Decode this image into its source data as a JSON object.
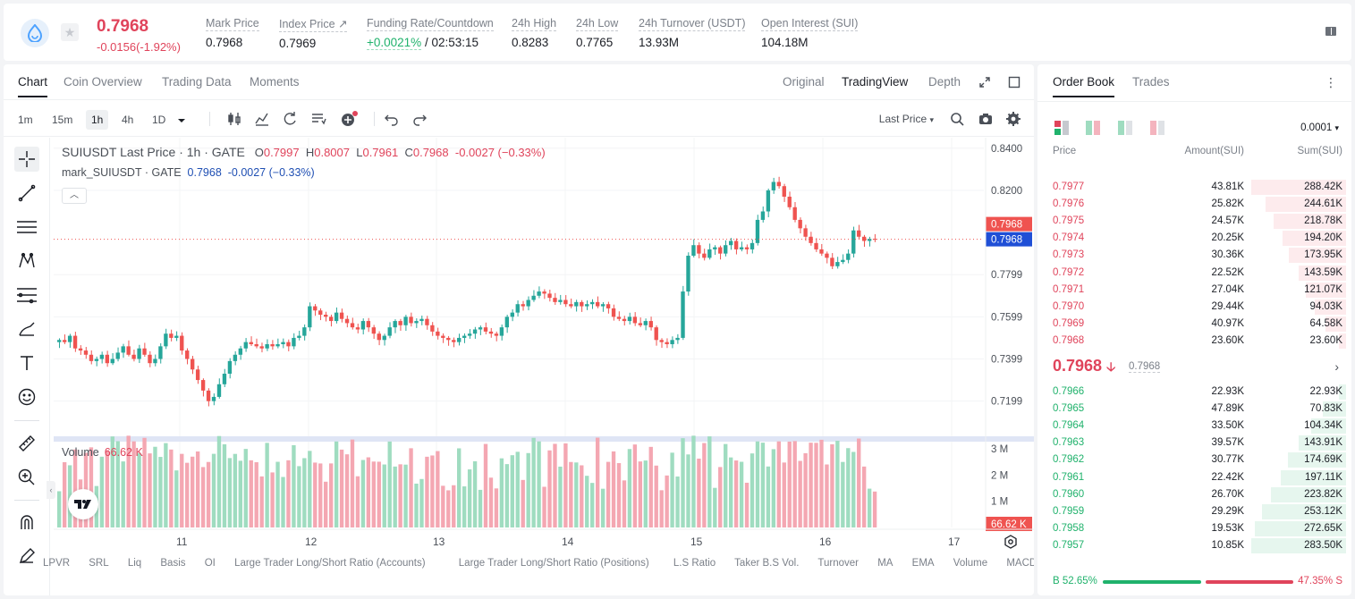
{
  "ticker": {
    "last_price": "0.7968",
    "change": "-0.0156(-1.92%)",
    "stats": [
      {
        "label": "Mark Price",
        "value": "0.7968"
      },
      {
        "label": "Index Price ↗",
        "value": "0.7969"
      },
      {
        "label": "Funding Rate/Countdown",
        "value_green": "+0.0021%",
        "value": " / 02:53:15"
      },
      {
        "label": "24h High",
        "value": "0.8283"
      },
      {
        "label": "24h Low",
        "value": "0.7765"
      },
      {
        "label": "24h Turnover (USDT)",
        "value": "13.93M"
      },
      {
        "label": "Open Interest (SUI)",
        "value": "104.18M"
      }
    ]
  },
  "chart_tabs": [
    "Chart",
    "Coin Overview",
    "Trading Data",
    "Moments"
  ],
  "view_tabs": [
    "Original",
    "TradingView",
    "Depth"
  ],
  "timeframes": [
    "1m",
    "15m",
    "1h",
    "4h",
    "1D"
  ],
  "last_price_select": "Last Price",
  "legend": {
    "title": "SUIUSDT Last Price · 1h · GATE",
    "o_label": "O",
    "o": "0.7997",
    "h_label": "H",
    "h": "0.8007",
    "l_label": "L",
    "l": "0.7961",
    "c_label": "C",
    "c": "0.7968",
    "chg": "-0.0027 (−0.33%)",
    "mark_title": "mark_SUIUSDT · GATE",
    "mark_val": "0.7968",
    "mark_chg": "-0.0027 (−0.33%)"
  },
  "volume_legend": {
    "label": "Volume",
    "value": "66.62 K"
  },
  "bottom_indicators": [
    "LPVR",
    "SRL",
    "Liq",
    "Basis",
    "OI",
    "Large Trader Long/Short Ratio (Accounts)",
    "Large Trader Long/Short Ratio (Positions)",
    "L.S Ratio",
    "Taker B.S Vol.",
    "Turnover",
    "MA",
    "EMA",
    "Volume",
    "MACD"
  ],
  "chart_data": {
    "type": "candlestick",
    "y_ticks": [
      "0.8400",
      "0.8200",
      "0.7799",
      "0.7599",
      "0.7399",
      "0.7199"
    ],
    "x_ticks": [
      "11",
      "12",
      "13",
      "14",
      "15",
      "16",
      "17"
    ],
    "price_labels": {
      "last": "0.7968",
      "mark": "0.7968"
    },
    "volume_ticks": [
      "3 M",
      "2 M",
      "1 M"
    ],
    "volume_last": "66.62 K",
    "ylim": [
      0.705,
      0.845
    ],
    "colors": {
      "up": "#26a69a",
      "down": "#ef5350"
    }
  },
  "order_book": {
    "tabs": [
      "Order Book",
      "Trades"
    ],
    "precision": "0.0001",
    "headers": [
      "Price",
      "Amount(SUI)",
      "Sum(SUI)"
    ],
    "asks": [
      {
        "price": "0.7977",
        "amount": "43.81K",
        "sum": "288.42K",
        "depth": 1.0
      },
      {
        "price": "0.7976",
        "amount": "25.82K",
        "sum": "244.61K",
        "depth": 0.85
      },
      {
        "price": "0.7975",
        "amount": "24.57K",
        "sum": "218.78K",
        "depth": 0.76
      },
      {
        "price": "0.7974",
        "amount": "20.25K",
        "sum": "194.20K",
        "depth": 0.67
      },
      {
        "price": "0.7973",
        "amount": "30.36K",
        "sum": "173.95K",
        "depth": 0.6
      },
      {
        "price": "0.7972",
        "amount": "22.52K",
        "sum": "143.59K",
        "depth": 0.5
      },
      {
        "price": "0.7971",
        "amount": "27.04K",
        "sum": "121.07K",
        "depth": 0.42
      },
      {
        "price": "0.7970",
        "amount": "29.44K",
        "sum": "94.03K",
        "depth": 0.33
      },
      {
        "price": "0.7969",
        "amount": "40.97K",
        "sum": "64.58K",
        "depth": 0.22
      },
      {
        "price": "0.7968",
        "amount": "23.60K",
        "sum": "23.60K",
        "depth": 0.08
      }
    ],
    "mid_price": "0.7968",
    "mid_mark": "0.7968",
    "bids": [
      {
        "price": "0.7966",
        "amount": "22.93K",
        "sum": "22.93K",
        "depth": 0.08
      },
      {
        "price": "0.7965",
        "amount": "47.89K",
        "sum": "70.83K",
        "depth": 0.25
      },
      {
        "price": "0.7964",
        "amount": "33.50K",
        "sum": "104.34K",
        "depth": 0.37
      },
      {
        "price": "0.7963",
        "amount": "39.57K",
        "sum": "143.91K",
        "depth": 0.5
      },
      {
        "price": "0.7962",
        "amount": "30.77K",
        "sum": "174.69K",
        "depth": 0.61
      },
      {
        "price": "0.7961",
        "amount": "22.42K",
        "sum": "197.11K",
        "depth": 0.69
      },
      {
        "price": "0.7960",
        "amount": "26.70K",
        "sum": "223.82K",
        "depth": 0.79
      },
      {
        "price": "0.7959",
        "amount": "29.29K",
        "sum": "253.12K",
        "depth": 0.89
      },
      {
        "price": "0.7958",
        "amount": "19.53K",
        "sum": "272.65K",
        "depth": 0.96
      },
      {
        "price": "0.7957",
        "amount": "10.85K",
        "sum": "283.50K",
        "depth": 1.0
      }
    ],
    "buy_ratio": "B 52.65%",
    "sell_ratio": "47.35% S"
  }
}
